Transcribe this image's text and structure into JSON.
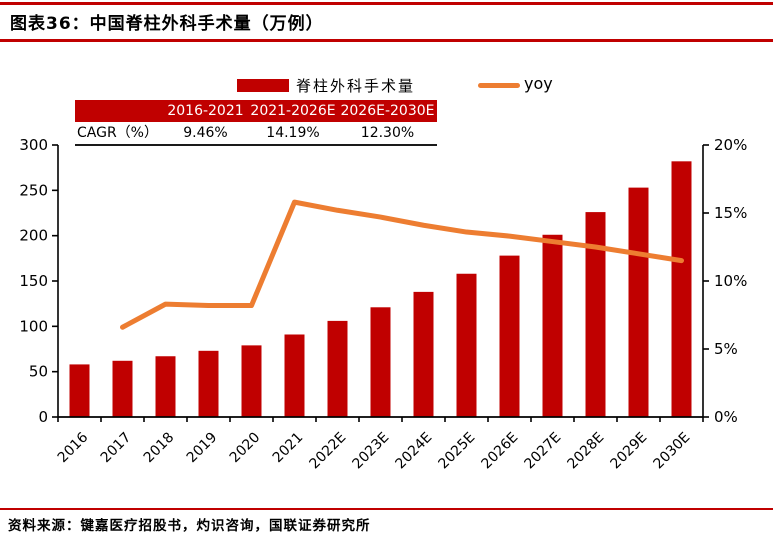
{
  "header": {
    "title": "图表36：中国脊柱外科手术量（万例）"
  },
  "legend": {
    "bar_label": "脊柱外科手术量",
    "line_label": "yoy"
  },
  "cagr_table": {
    "headers": [
      "",
      "2016-2021",
      "2021-2026E",
      "2026E-2030E"
    ],
    "row_label": "CAGR（%）",
    "values": [
      "9.46%",
      "14.19%",
      "12.30%"
    ]
  },
  "chart_data": {
    "type": "bar",
    "title": "中国脊柱外科手术量（万例）",
    "categories": [
      "2016",
      "2017",
      "2018",
      "2019",
      "2020",
      "2021",
      "2022E",
      "2023E",
      "2024E",
      "2025E",
      "2026E",
      "2027E",
      "2028E",
      "2029E",
      "2030E"
    ],
    "series": [
      {
        "name": "脊柱外科手术量",
        "type": "bar",
        "axis": "left",
        "values": [
          58,
          62,
          67,
          73,
          79,
          91,
          106,
          121,
          138,
          158,
          178,
          201,
          226,
          253,
          282
        ]
      },
      {
        "name": "yoy",
        "type": "line",
        "axis": "right",
        "values": [
          null,
          6.6,
          8.3,
          8.2,
          8.2,
          15.8,
          15.2,
          14.7,
          14.1,
          13.6,
          13.3,
          12.9,
          12.5,
          12.0,
          11.5
        ]
      }
    ],
    "left_axis": {
      "min": 0,
      "max": 300,
      "step": 50,
      "suffix": ""
    },
    "right_axis": {
      "min": 0,
      "max": 20,
      "step": 5,
      "suffix": "%"
    },
    "grid": false,
    "legend_position": "top"
  },
  "colors": {
    "bar": "#C00000",
    "line": "#ED7D31",
    "accent_rule": "#C00000",
    "table_header_bg": "#C00000",
    "table_header_text": "#FFFFFF",
    "axis": "#000000"
  },
  "footer": {
    "source": "资料来源：键嘉医疗招股书，灼识咨询，国联证券研究所"
  }
}
